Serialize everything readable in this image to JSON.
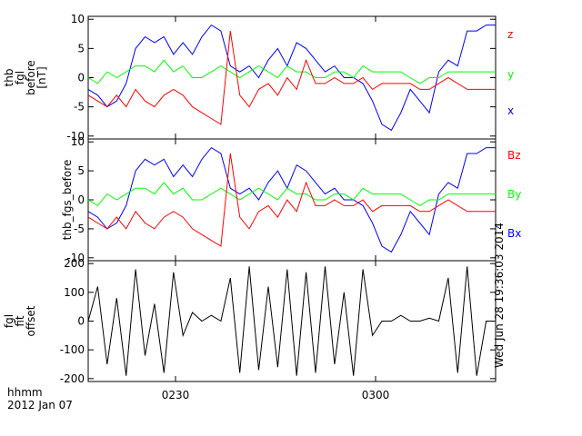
{
  "chart_data": {
    "type": "line",
    "x_axis": {
      "tick_labels": [
        "0230",
        "0300"
      ],
      "label_line1": "hhmm",
      "label_line2": "2012 Jan 07"
    },
    "panels": [
      {
        "name": "thb fgl before [nT]",
        "ylabel_lines": [
          "thb",
          "fgl",
          "before",
          "[nT]"
        ],
        "ylim": [
          -10.5,
          10.5
        ],
        "yticks": [
          -10,
          -5,
          0,
          5,
          10
        ],
        "series": [
          {
            "name": "x",
            "color": "#0000ff",
            "values": [
              -2,
              -3,
              -5,
              -4,
              -1,
              5,
              7,
              6,
              7,
              4,
              6,
              4,
              7,
              9,
              8,
              2,
              1,
              2,
              0,
              3,
              5,
              2,
              6,
              5,
              3,
              1,
              2,
              0,
              0,
              -1,
              -4,
              -8,
              -9,
              -6,
              -2,
              -4,
              -6,
              1,
              3,
              2,
              8,
              8,
              9,
              9
            ]
          },
          {
            "name": "y",
            "color": "#00ff00",
            "values": [
              0,
              -1,
              1,
              0,
              1,
              2,
              2,
              1,
              3,
              1,
              2,
              0,
              0,
              1,
              2,
              1,
              0,
              1,
              2,
              1,
              0,
              2,
              1,
              1,
              0,
              0,
              1,
              1,
              0,
              2,
              1,
              1,
              1,
              1,
              0,
              -1,
              0,
              0,
              1,
              1,
              1,
              1,
              1,
              1
            ]
          },
          {
            "name": "z",
            "color": "#ff0000",
            "values": [
              -3,
              -4,
              -5,
              -3,
              -5,
              -2,
              -4,
              -5,
              -3,
              -2,
              -3,
              -5,
              -6,
              -7,
              -8,
              8,
              -3,
              -5,
              -2,
              -1,
              -3,
              0,
              -2,
              3,
              -1,
              -1,
              0,
              -1,
              -1,
              0,
              -2,
              -1,
              -1,
              -1,
              -1,
              -2,
              -2,
              -1,
              0,
              -1,
              -2,
              -2,
              -2,
              -2
            ]
          }
        ]
      },
      {
        "name": "thb fgs before",
        "ylabel_lines": [
          "thb_fgs_before"
        ],
        "ylim": [
          -10.5,
          10.5
        ],
        "yticks": [
          -10,
          -5,
          0,
          5,
          10
        ],
        "series": [
          {
            "name": "Bx",
            "color": "#0000ff",
            "values": [
              -2,
              -3,
              -5,
              -4,
              -1,
              5,
              7,
              6,
              7,
              4,
              6,
              4,
              7,
              9,
              8,
              2,
              1,
              2,
              0,
              3,
              5,
              2,
              6,
              5,
              3,
              1,
              2,
              0,
              0,
              -1,
              -4,
              -8,
              -9,
              -6,
              -2,
              -4,
              -6,
              1,
              3,
              2,
              8,
              8,
              9,
              9
            ]
          },
          {
            "name": "By",
            "color": "#00ff00",
            "values": [
              0,
              -1,
              1,
              0,
              1,
              2,
              2,
              1,
              3,
              1,
              2,
              0,
              0,
              1,
              2,
              1,
              0,
              1,
              2,
              1,
              0,
              2,
              1,
              1,
              0,
              0,
              1,
              1,
              0,
              2,
              1,
              1,
              1,
              1,
              0,
              -1,
              0,
              0,
              1,
              1,
              1,
              1,
              1,
              1
            ]
          },
          {
            "name": "Bz",
            "color": "#ff0000",
            "values": [
              -3,
              -4,
              -5,
              -3,
              -5,
              -2,
              -4,
              -5,
              -3,
              -2,
              -3,
              -5,
              -6,
              -7,
              -8,
              8,
              -3,
              -5,
              -2,
              -1,
              -3,
              0,
              -2,
              3,
              -1,
              -1,
              0,
              -1,
              -1,
              0,
              -2,
              -1,
              -1,
              -1,
              -1,
              -2,
              -2,
              -1,
              0,
              -1,
              -2,
              -2,
              -2,
              -2
            ]
          }
        ]
      },
      {
        "name": "fgl fit offset",
        "ylabel_lines": [
          "fgl",
          "fit",
          "offset"
        ],
        "ylim": [
          -210,
          210
        ],
        "yticks": [
          -200,
          -100,
          0,
          100,
          200
        ],
        "series": [
          {
            "name": "",
            "color": "#000000",
            "values": [
              0,
              120,
              -150,
              80,
              -190,
              180,
              -120,
              60,
              -180,
              170,
              -50,
              30,
              0,
              20,
              0,
              150,
              -180,
              190,
              -170,
              120,
              -160,
              180,
              -190,
              170,
              -180,
              190,
              -150,
              100,
              -190,
              180,
              -50,
              0,
              0,
              20,
              0,
              0,
              10,
              0,
              150,
              -180,
              190,
              -190,
              0,
              0
            ]
          }
        ]
      }
    ],
    "stamp": "Wed Jun 28 19:36:03 2014"
  }
}
